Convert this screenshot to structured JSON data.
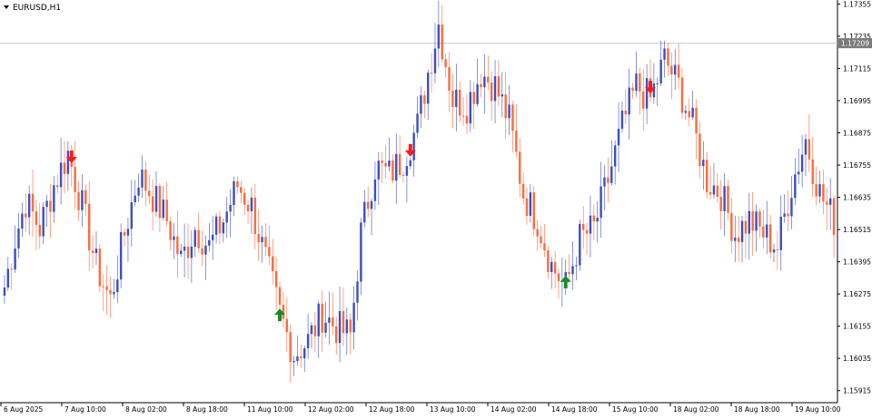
{
  "window": {
    "symbol_label": "EURUSD,H1",
    "current_price_label": "1.17209"
  },
  "colors": {
    "bull": "#3c4fc2",
    "bear": "#ff6a3c",
    "grid_line": "#c8c8c8",
    "price_tag_bg": "#7a7a7a",
    "sell_arrow": "#ff1a1a",
    "buy_arrow": "#1a8a2a"
  },
  "chart_data": {
    "type": "candlestick",
    "timeframe": "H1",
    "symbol": "EURUSD",
    "ylim": [
      1.1587,
      1.1737
    ],
    "y_ticks": [
      "1.17355",
      "1.17235",
      "1.17115",
      "1.16995",
      "1.16875",
      "1.16755",
      "1.16635",
      "1.16515",
      "1.16395",
      "1.16275",
      "1.16155",
      "1.16035",
      "1.15915"
    ],
    "x_ticks": [
      "6 Aug 2025",
      "7 Aug 10:00",
      "8 Aug 02:00",
      "8 Aug 18:00",
      "11 Aug 10:00",
      "12 Aug 02:00",
      "12 Aug 18:00",
      "13 Aug 10:00",
      "14 Aug 02:00",
      "14 Aug 18:00",
      "15 Aug 10:00",
      "18 Aug 02:00",
      "18 Aug 18:00",
      "19 Aug 10:00"
    ],
    "current_price": 1.17209,
    "waypoints": [
      [
        0,
        1.163
      ],
      [
        3,
        1.1648
      ],
      [
        6,
        1.1662
      ],
      [
        10,
        1.1652
      ],
      [
        14,
        1.1668
      ],
      [
        18,
        1.168
      ],
      [
        22,
        1.166
      ],
      [
        26,
        1.1638
      ],
      [
        30,
        1.1625
      ],
      [
        34,
        1.165
      ],
      [
        38,
        1.1672
      ],
      [
        42,
        1.1664
      ],
      [
        46,
        1.1655
      ],
      [
        50,
        1.164
      ],
      [
        54,
        1.1652
      ],
      [
        58,
        1.1645
      ],
      [
        62,
        1.1655
      ],
      [
        66,
        1.1668
      ],
      [
        70,
        1.166
      ],
      [
        74,
        1.164
      ],
      [
        78,
        1.162
      ],
      [
        82,
        1.1605
      ],
      [
        86,
        1.161
      ],
      [
        90,
        1.162
      ],
      [
        94,
        1.1615
      ],
      [
        98,
        1.1612
      ],
      [
        101,
        1.165
      ],
      [
        105,
        1.1675
      ],
      [
        109,
        1.1672
      ],
      [
        113,
        1.1678
      ],
      [
        117,
        1.169
      ],
      [
        120,
        1.171
      ],
      [
        123,
        1.1728
      ],
      [
        127,
        1.17
      ],
      [
        131,
        1.1698
      ],
      [
        135,
        1.171
      ],
      [
        139,
        1.1705
      ],
      [
        143,
        1.1692
      ],
      [
        147,
        1.1665
      ],
      [
        151,
        1.1655
      ],
      [
        155,
        1.1638
      ],
      [
        159,
        1.163
      ],
      [
        163,
        1.1648
      ],
      [
        167,
        1.1652
      ],
      [
        171,
        1.167
      ],
      [
        175,
        1.169
      ],
      [
        179,
        1.1705
      ],
      [
        183,
        1.17
      ],
      [
        187,
        1.1715
      ],
      [
        191,
        1.1705
      ],
      [
        195,
        1.169
      ],
      [
        199,
        1.167
      ],
      [
        203,
        1.1665
      ],
      [
        207,
        1.165
      ],
      [
        211,
        1.1655
      ],
      [
        215,
        1.165
      ],
      [
        219,
        1.1645
      ],
      [
        223,
        1.1668
      ],
      [
        227,
        1.1685
      ],
      [
        231,
        1.1665
      ],
      [
        235,
        1.1655
      ]
    ],
    "signals": [
      {
        "type": "sell",
        "index": 19
      },
      {
        "type": "sell",
        "index": 115
      },
      {
        "type": "sell",
        "index": 183
      },
      {
        "type": "buy",
        "index": 78
      },
      {
        "type": "buy",
        "index": 159
      }
    ]
  }
}
